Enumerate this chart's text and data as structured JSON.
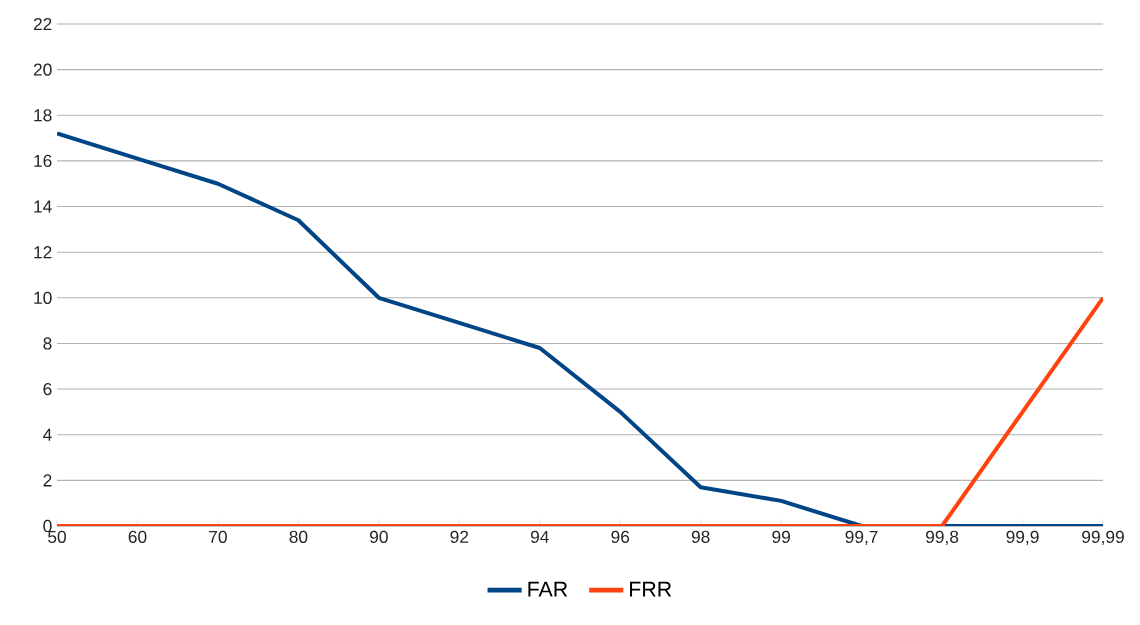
{
  "chart_data": {
    "type": "line",
    "categories": [
      "50",
      "60",
      "70",
      "80",
      "90",
      "92",
      "94",
      "96",
      "98",
      "99",
      "99,7",
      "99,8",
      "99,9",
      "99,99"
    ],
    "series": [
      {
        "name": "FAR",
        "color": "#004586",
        "values": [
          17.2,
          16.1,
          15.0,
          13.4,
          10.0,
          8.9,
          7.8,
          5.0,
          1.7,
          1.1,
          0,
          0,
          0,
          0
        ]
      },
      {
        "name": "FRR",
        "color": "#ff420e",
        "values": [
          0,
          0,
          0,
          0,
          0,
          0,
          0,
          0,
          0,
          0,
          0,
          0,
          5,
          10
        ]
      }
    ],
    "ylim": [
      0,
      22
    ],
    "yticks": [
      0,
      2,
      4,
      6,
      8,
      10,
      12,
      14,
      16,
      18,
      20,
      22
    ],
    "grid": "y",
    "legend": "bottom"
  }
}
